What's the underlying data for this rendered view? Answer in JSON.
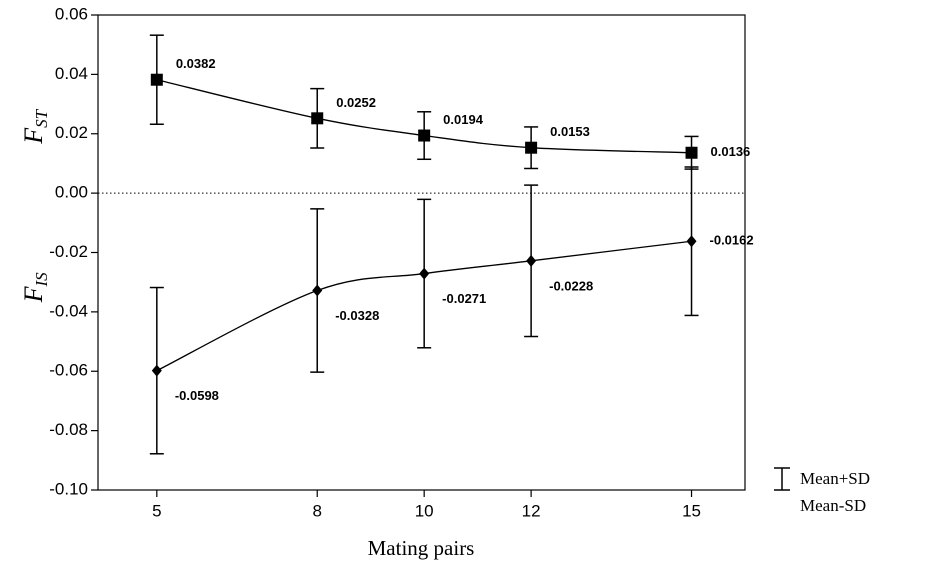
{
  "chart_data": {
    "type": "line",
    "x_label": "Mating pairs",
    "x": [
      5,
      8,
      10,
      12,
      15
    ],
    "xlim": [
      3.9,
      16
    ],
    "xticks": [
      5,
      8,
      10,
      12,
      15
    ],
    "ylim": [
      -0.1,
      0.06
    ],
    "yticks": [
      0.06,
      0.04,
      0.02,
      {
        "value": 0,
        "label": "0.00"
      },
      -0.02,
      -0.04,
      -0.06,
      -0.08,
      {
        "value": -0.1,
        "label": "-0.10"
      }
    ],
    "zero_line": true,
    "series": [
      {
        "label_main": "F",
        "label_sub": "ST",
        "marker": "square",
        "color": "#000000",
        "values": [
          0.0382,
          0.0252,
          0.0194,
          0.0153,
          0.0136
        ],
        "errors": [
          0.015,
          0.01,
          0.008,
          0.007,
          0.0055
        ]
      },
      {
        "label_main": "F",
        "label_sub": "IS",
        "marker": "diamond",
        "color": "#000000",
        "values": [
          -0.0598,
          -0.0328,
          -0.0271,
          -0.0228,
          -0.0162
        ],
        "errors": [
          0.028,
          0.0275,
          0.025,
          0.0255,
          0.025
        ]
      }
    ],
    "legend_labels": [
      "Mean+SD",
      "Mean-SD"
    ]
  }
}
